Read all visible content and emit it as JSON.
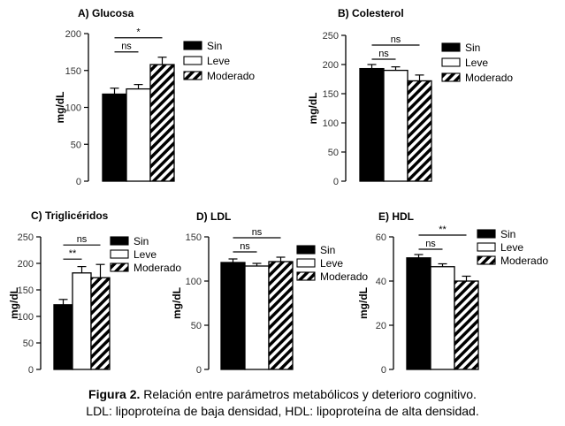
{
  "chart_data": [
    {
      "type": "bar",
      "title": "A) Glucosa",
      "ylabel": "mg/dL",
      "ylim": [
        0,
        200
      ],
      "yticks": [
        0,
        50,
        100,
        150,
        200
      ],
      "categories": [
        "Sin",
        "Leve",
        "Moderado"
      ],
      "values": [
        118,
        125,
        158
      ],
      "errors": [
        8,
        6,
        10
      ],
      "legend": [
        "Sin",
        "Leve",
        "Moderado"
      ],
      "legend_position": "top-right",
      "annotations": [
        {
          "text": "ns",
          "from": 0,
          "to": 1,
          "level": 1
        },
        {
          "text": "*",
          "from": 0,
          "to": 2,
          "level": 2
        }
      ]
    },
    {
      "type": "bar",
      "title": "B) Colesterol",
      "ylabel": "mg/dL",
      "ylim": [
        0,
        250
      ],
      "yticks": [
        0,
        50,
        100,
        150,
        200,
        250
      ],
      "categories": [
        "Sin",
        "Leve",
        "Moderado"
      ],
      "values": [
        193,
        190,
        172
      ],
      "errors": [
        7,
        6,
        10
      ],
      "legend": [
        "Sin",
        "Leve",
        "Moderado"
      ],
      "legend_position": "top-right",
      "annotations": [
        {
          "text": "ns",
          "from": 0,
          "to": 1,
          "level": 1
        },
        {
          "text": "ns",
          "from": 0,
          "to": 2,
          "level": 2
        }
      ]
    },
    {
      "type": "bar",
      "title": "C) Triglicéridos",
      "ylabel": "mg/dL",
      "ylim": [
        0,
        250
      ],
      "yticks": [
        0,
        50,
        100,
        150,
        200,
        250
      ],
      "categories": [
        "Sin",
        "Leve",
        "Moderado"
      ],
      "values": [
        122,
        182,
        173
      ],
      "errors": [
        10,
        12,
        25
      ],
      "legend": [
        "Sin",
        "Leve",
        "Moderado"
      ],
      "legend_position": "top-right",
      "annotations": [
        {
          "text": "**",
          "from": 0,
          "to": 1,
          "level": 1
        },
        {
          "text": "ns",
          "from": 0,
          "to": 2,
          "level": 2
        }
      ]
    },
    {
      "type": "bar",
      "title": "D) LDL",
      "ylabel": "mg/dL",
      "ylim": [
        0,
        150
      ],
      "yticks": [
        0,
        50,
        100,
        150
      ],
      "categories": [
        "Sin",
        "Leve",
        "Moderado"
      ],
      "values": [
        121,
        117,
        122
      ],
      "errors": [
        4,
        3,
        5
      ],
      "legend": [
        "Sin",
        "Leve",
        "Moderado"
      ],
      "legend_position": "top-right",
      "annotations": [
        {
          "text": "ns",
          "from": 0,
          "to": 1,
          "level": 1
        },
        {
          "text": "ns",
          "from": 0,
          "to": 2,
          "level": 2
        }
      ]
    },
    {
      "type": "bar",
      "title": "E) HDL",
      "ylabel": "mg/dL",
      "ylim": [
        0,
        60
      ],
      "yticks": [
        0,
        20,
        40,
        60
      ],
      "categories": [
        "Sin",
        "Leve",
        "Moderado"
      ],
      "values": [
        50.5,
        46.5,
        40
      ],
      "errors": [
        1.5,
        1.3,
        2.2
      ],
      "legend": [
        "Sin",
        "Leve",
        "Moderado"
      ],
      "legend_position": "top-right",
      "annotations": [
        {
          "text": "ns",
          "from": 0,
          "to": 1,
          "level": 1
        },
        {
          "text": "**",
          "from": 0,
          "to": 2,
          "level": 2
        }
      ]
    }
  ],
  "colors": {
    "Sin": "#000000",
    "Leve": "#ffffff",
    "Moderado": "hatched-black"
  },
  "caption": {
    "label": "Figura 2.",
    "line1": " Relación entre parámetros metabólicos y deterioro cognitivo.",
    "line2": "LDL: lipoproteína de baja densidad, HDL: lipoproteína de alta densidad."
  }
}
